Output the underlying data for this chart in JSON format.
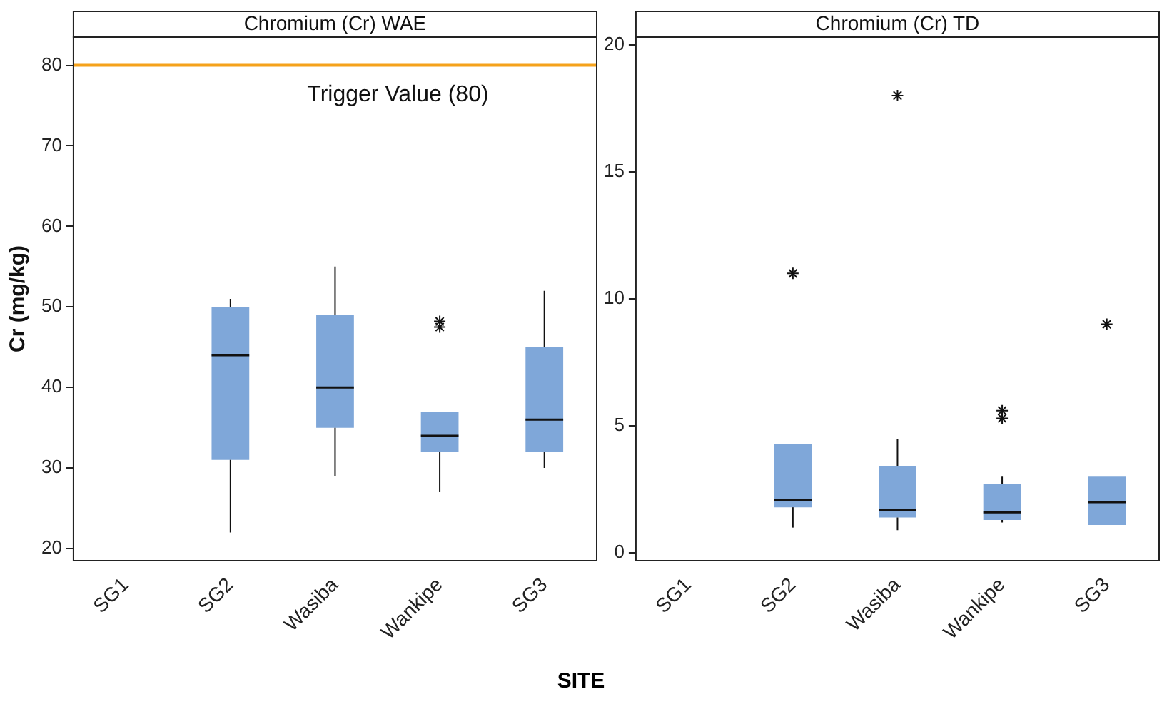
{
  "chart_data": [
    {
      "type": "box",
      "title": "Chromium (Cr) WAE",
      "ylabel": "Cr (mg/kg)",
      "xlabel": "SITE",
      "categories": [
        "SG1",
        "SG2",
        "Wasiba",
        "Wankipe",
        "SG3"
      ],
      "color": "#7fa7d9",
      "boxes": [
        null,
        {
          "low": 22,
          "q1": 31,
          "median": 44,
          "q3": 50,
          "high": 51
        },
        {
          "low": 29,
          "q1": 35,
          "median": 40,
          "q3": 49,
          "high": 55
        },
        {
          "low": 27,
          "q1": 32,
          "median": 34,
          "q3": 37,
          "high": 37,
          "outliers": [
            47.5,
            48.2
          ]
        },
        {
          "low": 30,
          "q1": 32,
          "median": 36,
          "q3": 45,
          "high": 52
        }
      ],
      "ylim": [
        18.5,
        83.5
      ],
      "yticks": [
        20,
        30,
        40,
        50,
        60,
        70,
        80
      ],
      "grid": false,
      "marker": "star",
      "ref_lines": [
        {
          "axis": "y",
          "value": 80,
          "label": "Trigger Value (80)",
          "color": "#f5a21b"
        }
      ]
    },
    {
      "type": "box",
      "title": "Chromium (Cr) TD",
      "categories": [
        "SG1",
        "SG2",
        "Wasiba",
        "Wankipe",
        "SG3"
      ],
      "color": "#7fa7d9",
      "boxes": [
        null,
        {
          "low": 1.0,
          "q1": 1.8,
          "median": 2.1,
          "q3": 4.3,
          "high": 4.3,
          "outliers": [
            11
          ]
        },
        {
          "low": 0.9,
          "q1": 1.4,
          "median": 1.7,
          "q3": 3.4,
          "high": 4.5,
          "outliers": [
            18
          ]
        },
        {
          "low": 1.2,
          "q1": 1.3,
          "median": 1.6,
          "q3": 2.7,
          "high": 3.0,
          "outliers": [
            5.3,
            5.6
          ]
        },
        {
          "low": 1.1,
          "q1": 1.1,
          "median": 2.0,
          "q3": 3.0,
          "high": 3.0,
          "outliers": [
            9
          ]
        }
      ],
      "ylim": [
        -0.3,
        20.3
      ],
      "yticks": [
        0,
        5,
        10,
        15,
        20
      ],
      "grid": false,
      "marker": "star"
    }
  ]
}
